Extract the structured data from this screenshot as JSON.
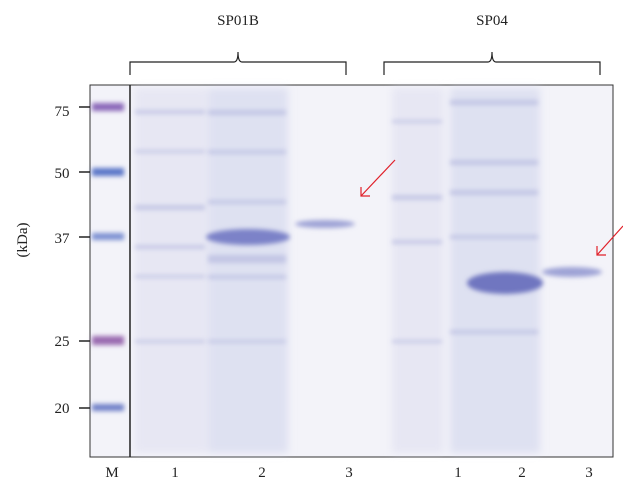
{
  "groups": [
    "SP01B",
    "SP04"
  ],
  "axis_label": "(kDa)",
  "marker_sizes": [
    "75",
    "50",
    "37",
    "25",
    "20"
  ],
  "lanes": [
    "M",
    "1",
    "2",
    "3",
    "1",
    "2",
    "3"
  ]
}
